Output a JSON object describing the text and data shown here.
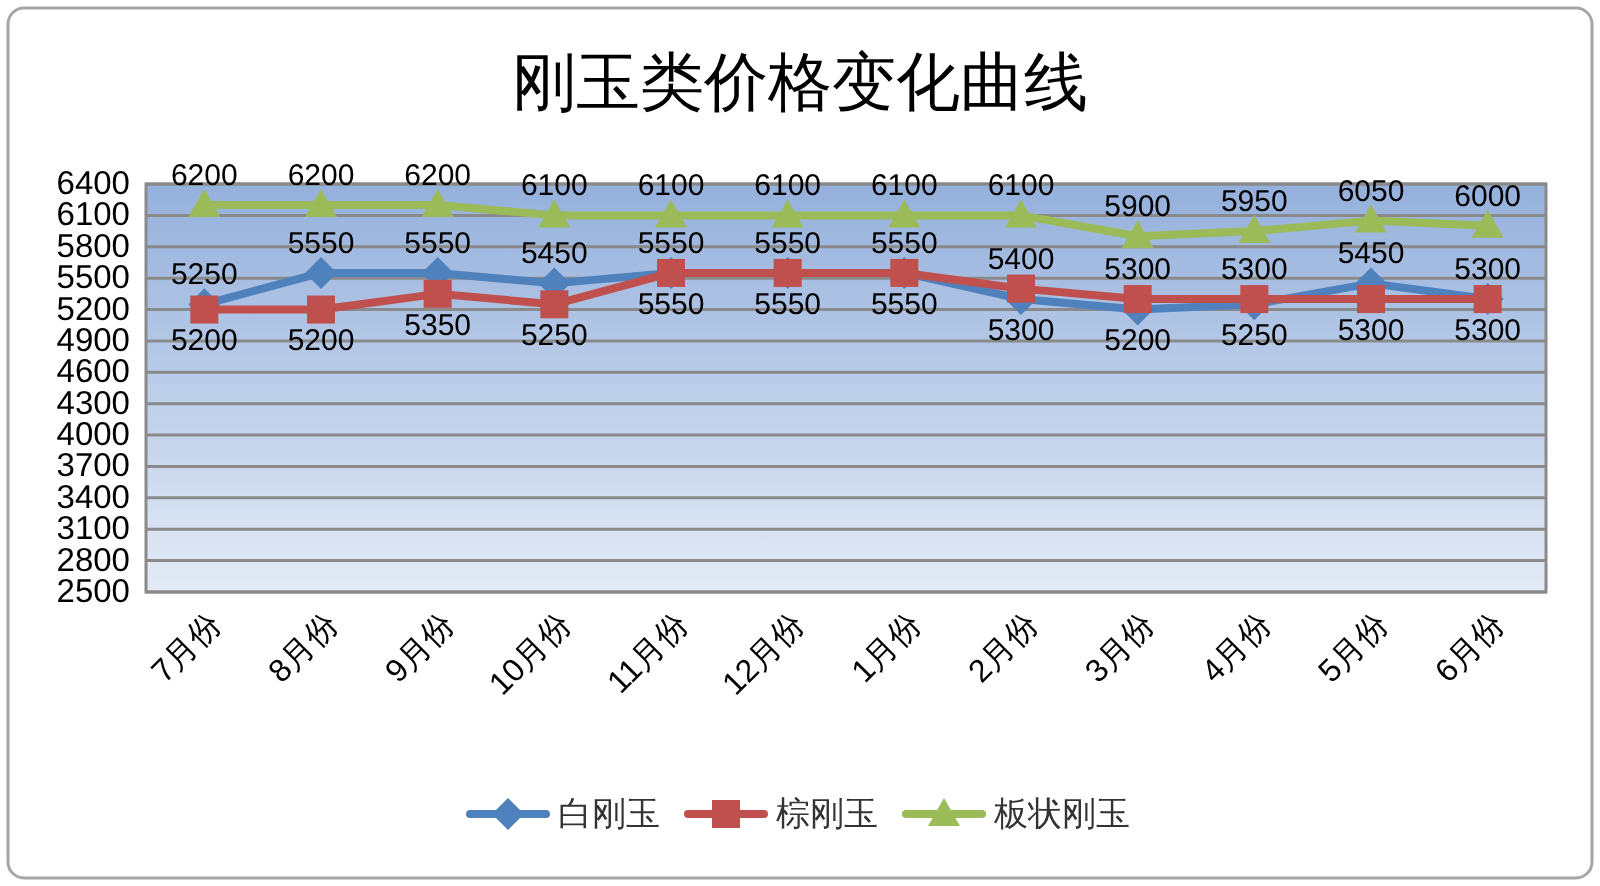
{
  "chart_data": {
    "type": "line",
    "title": "刚玉类价格变化曲线",
    "categories": [
      "7月份",
      "8月份",
      "9月份",
      "10月份",
      "11月份",
      "12月份",
      "1月份",
      "2月份",
      "3月份",
      "4月份",
      "5月份",
      "6月份"
    ],
    "series": [
      {
        "name": "白刚玉",
        "color": "#4f81bd",
        "marker": "diamond",
        "values": [
          5250,
          5550,
          5550,
          5450,
          5550,
          5550,
          5550,
          5300,
          5200,
          5250,
          5450,
          5300
        ]
      },
      {
        "name": "棕刚玉",
        "color": "#c0504d",
        "marker": "square",
        "values": [
          5200,
          5200,
          5350,
          5250,
          5550,
          5550,
          5550,
          5400,
          5300,
          5300,
          5300,
          5300
        ]
      },
      {
        "name": "板状刚玉",
        "color": "#9bbb59",
        "marker": "triangle",
        "values": [
          6200,
          6200,
          6200,
          6100,
          6100,
          6100,
          6100,
          6100,
          5900,
          5950,
          6050,
          6000
        ]
      }
    ],
    "ylim": [
      2500,
      6400
    ],
    "yticks": [
      2500,
      2800,
      3100,
      3400,
      3700,
      4000,
      4300,
      4600,
      4900,
      5200,
      5500,
      5800,
      6100,
      6400
    ],
    "grid": "y",
    "legend": "bottom",
    "data_labels": true,
    "line_style": "solid"
  }
}
